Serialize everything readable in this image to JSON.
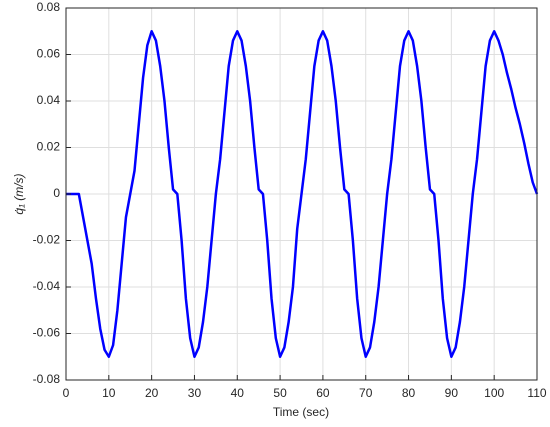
{
  "chart_data": {
    "type": "line",
    "xlabel": "Time (sec)",
    "ylabel": "q̇₁ (m/s)",
    "x": [
      0,
      1,
      2,
      3,
      4,
      5,
      6,
      7,
      8,
      9,
      10,
      11,
      12,
      13,
      14,
      15,
      16,
      17,
      18,
      19,
      20,
      21,
      22,
      23,
      24,
      25,
      26,
      27,
      28,
      29,
      30,
      31,
      32,
      33,
      34,
      35,
      36,
      37,
      38,
      39,
      40,
      41,
      42,
      43,
      44,
      45,
      46,
      47,
      48,
      49,
      50,
      51,
      52,
      53,
      54,
      55,
      56,
      57,
      58,
      59,
      60,
      61,
      62,
      63,
      64,
      65,
      66,
      67,
      68,
      69,
      70,
      71,
      72,
      73,
      74,
      75,
      76,
      77,
      78,
      79,
      80,
      81,
      82,
      83,
      84,
      85,
      86,
      87,
      88,
      89,
      90,
      91,
      92,
      93,
      94,
      95,
      96,
      97,
      98,
      99,
      100,
      101,
      102,
      103,
      104,
      105,
      106,
      107,
      108,
      109,
      110
    ],
    "series": [
      {
        "color": "#0000ff",
        "values": [
          0,
          0,
          0,
          0,
          -0.01,
          -0.02,
          -0.03,
          -0.045,
          -0.058,
          -0.067,
          -0.07,
          -0.065,
          -0.05,
          -0.03,
          -0.01,
          0,
          0.01,
          0.03,
          0.05,
          0.064,
          0.07,
          0.066,
          0.055,
          0.04,
          0.02,
          0.002,
          0,
          -0.02,
          -0.045,
          -0.062,
          -0.07,
          -0.066,
          -0.055,
          -0.04,
          -0.02,
          0,
          0.015,
          0.035,
          0.055,
          0.066,
          0.07,
          0.066,
          0.055,
          0.04,
          0.02,
          0.002,
          0,
          -0.02,
          -0.045,
          -0.062,
          -0.07,
          -0.066,
          -0.055,
          -0.04,
          -0.015,
          0,
          0.015,
          0.035,
          0.055,
          0.066,
          0.07,
          0.066,
          0.055,
          0.04,
          0.02,
          0.002,
          0,
          -0.02,
          -0.045,
          -0.062,
          -0.07,
          -0.066,
          -0.055,
          -0.04,
          -0.02,
          0,
          0.015,
          0.035,
          0.055,
          0.066,
          0.07,
          0.066,
          0.055,
          0.04,
          0.02,
          0.002,
          0,
          -0.02,
          -0.045,
          -0.062,
          -0.07,
          -0.066,
          -0.055,
          -0.04,
          -0.02,
          0,
          0.015,
          0.035,
          0.055,
          0.066,
          0.07,
          0.066,
          0.06,
          0.052,
          0.045,
          0.037,
          0.03,
          0.022,
          0.013,
          0.005,
          0
        ]
      }
    ],
    "xlim": [
      0,
      110
    ],
    "xticks": [
      0,
      10,
      20,
      30,
      40,
      50,
      60,
      70,
      80,
      90,
      100,
      110
    ],
    "ylim": [
      -0.08,
      0.08
    ],
    "yticks": [
      -0.08,
      -0.06,
      -0.04,
      -0.02,
      0,
      0.02,
      0.04,
      0.06,
      0.08
    ],
    "grid": true
  }
}
